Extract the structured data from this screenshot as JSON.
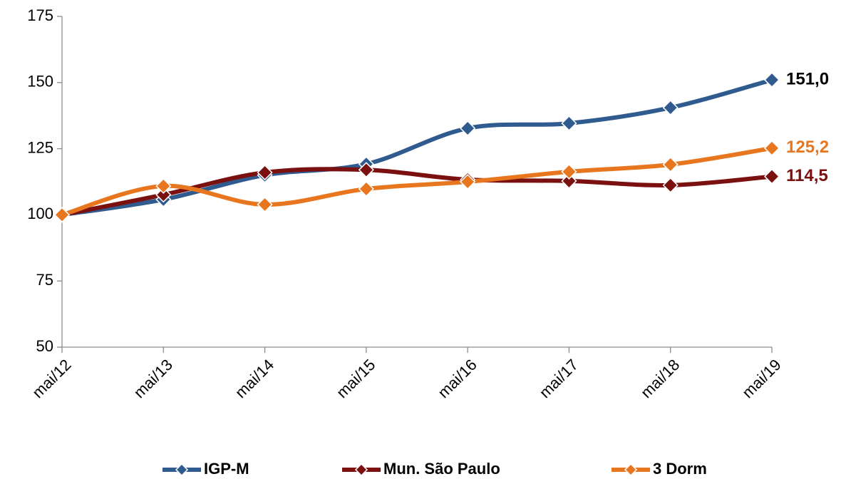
{
  "chart_data": {
    "type": "line",
    "categories": [
      "mai/12",
      "mai/13",
      "mai/14",
      "mai/15",
      "mai/16",
      "mai/17",
      "mai/18",
      "mai/19"
    ],
    "series": [
      {
        "name": "IGP-M",
        "color": "#2f5b8f",
        "label_color": "#000000",
        "values": [
          100,
          105.8,
          115,
          119.2,
          132.7,
          134.6,
          140.5,
          151.0
        ],
        "value_labels": [
          null,
          null,
          null,
          null,
          null,
          null,
          null,
          "151,0"
        ]
      },
      {
        "name": "Mun. São Paulo",
        "color": "#7b1010",
        "label_color": "#7b1010",
        "values": [
          100,
          107.6,
          116,
          117,
          113.3,
          112.8,
          111.2,
          114.5
        ],
        "value_labels": [
          null,
          null,
          null,
          null,
          null,
          null,
          null,
          "114,5"
        ]
      },
      {
        "name": "3 Dorm",
        "color": "#e8761e",
        "label_color": "#e8761e",
        "values": [
          100,
          110.9,
          103.9,
          109.8,
          112.5,
          116.3,
          119,
          125.2
        ],
        "value_labels": [
          null,
          null,
          null,
          null,
          null,
          null,
          null,
          "125,2"
        ]
      }
    ],
    "ylim": [
      50,
      175
    ],
    "yticks": [
      50,
      75,
      100,
      125,
      150,
      175
    ],
    "grid": false,
    "legend": "bottom"
  }
}
